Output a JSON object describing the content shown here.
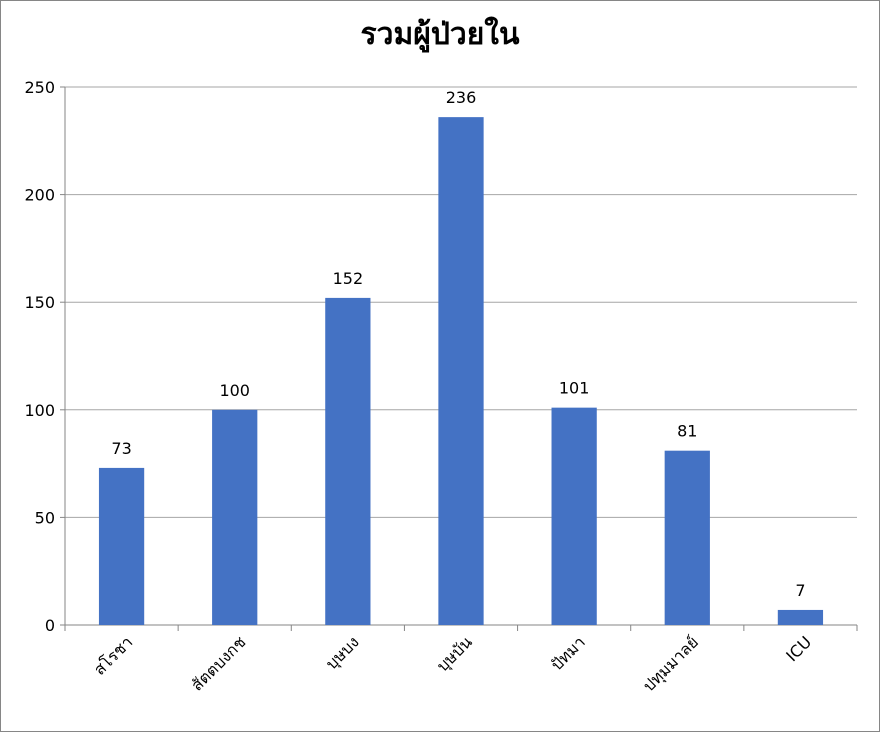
{
  "chart_data": {
    "type": "bar",
    "title": "รวมผู้ป่วยใน",
    "categories": [
      "สโรชา",
      "สัตตบงกช",
      "บุษบง",
      "บุษบัน",
      "ปัทมา",
      "ปทุมมาลย์",
      "ICU"
    ],
    "values": [
      73,
      100,
      152,
      236,
      101,
      81,
      7
    ],
    "color": "#4472c4",
    "ylim": [
      0,
      250
    ],
    "yticks": [
      0,
      50,
      100,
      150,
      200,
      250
    ],
    "grid": true
  }
}
